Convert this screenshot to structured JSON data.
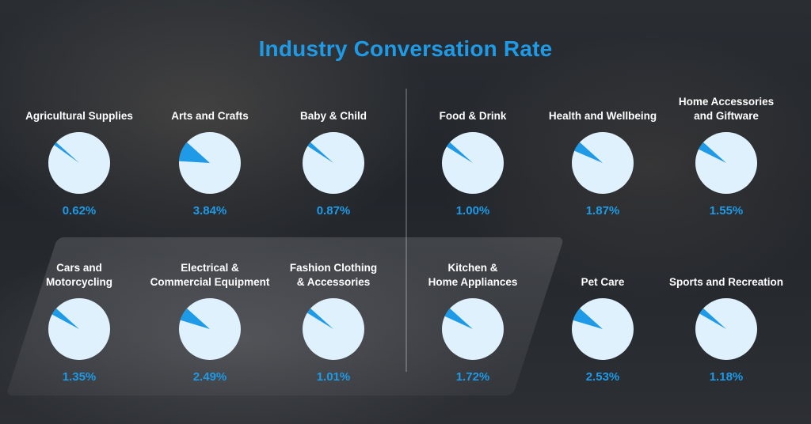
{
  "title": "Industry Conversation Rate",
  "colors": {
    "accent": "#1e9ae6",
    "pie_base": "#dff1fd",
    "pie_slice": "#1e9ae6"
  },
  "chart_data": {
    "type": "pie",
    "title": "Industry Conversation Rate",
    "unit": "%",
    "items": [
      {
        "label_lines": [
          "Agricultural Supplies"
        ],
        "value": 0.62,
        "value_label": "0.62%"
      },
      {
        "label_lines": [
          "Arts and Crafts"
        ],
        "value": 3.84,
        "value_label": "3.84%"
      },
      {
        "label_lines": [
          "Baby & Child"
        ],
        "value": 0.87,
        "value_label": "0.87%"
      },
      {
        "label_lines": [
          "Food & Drink"
        ],
        "value": 1.0,
        "value_label": "1.00%"
      },
      {
        "label_lines": [
          "Health and Wellbeing"
        ],
        "value": 1.87,
        "value_label": "1.87%"
      },
      {
        "label_lines": [
          "Home Accessories",
          "and Giftware"
        ],
        "value": 1.55,
        "value_label": "1.55%"
      },
      {
        "label_lines": [
          "Cars and",
          "Motorcycling"
        ],
        "value": 1.35,
        "value_label": "1.35%"
      },
      {
        "label_lines": [
          "Electrical &",
          "Commercial Equipment"
        ],
        "value": 2.49,
        "value_label": "2.49%"
      },
      {
        "label_lines": [
          "Fashion Clothing",
          "& Accessories"
        ],
        "value": 1.01,
        "value_label": "1.01%"
      },
      {
        "label_lines": [
          "Kitchen &",
          "Home Appliances"
        ],
        "value": 1.72,
        "value_label": "1.72%"
      },
      {
        "label_lines": [
          "Pet Care"
        ],
        "value": 2.53,
        "value_label": "2.53%"
      },
      {
        "label_lines": [
          "Sports and Recreation"
        ],
        "value": 1.18,
        "value_label": "1.18%"
      }
    ]
  }
}
